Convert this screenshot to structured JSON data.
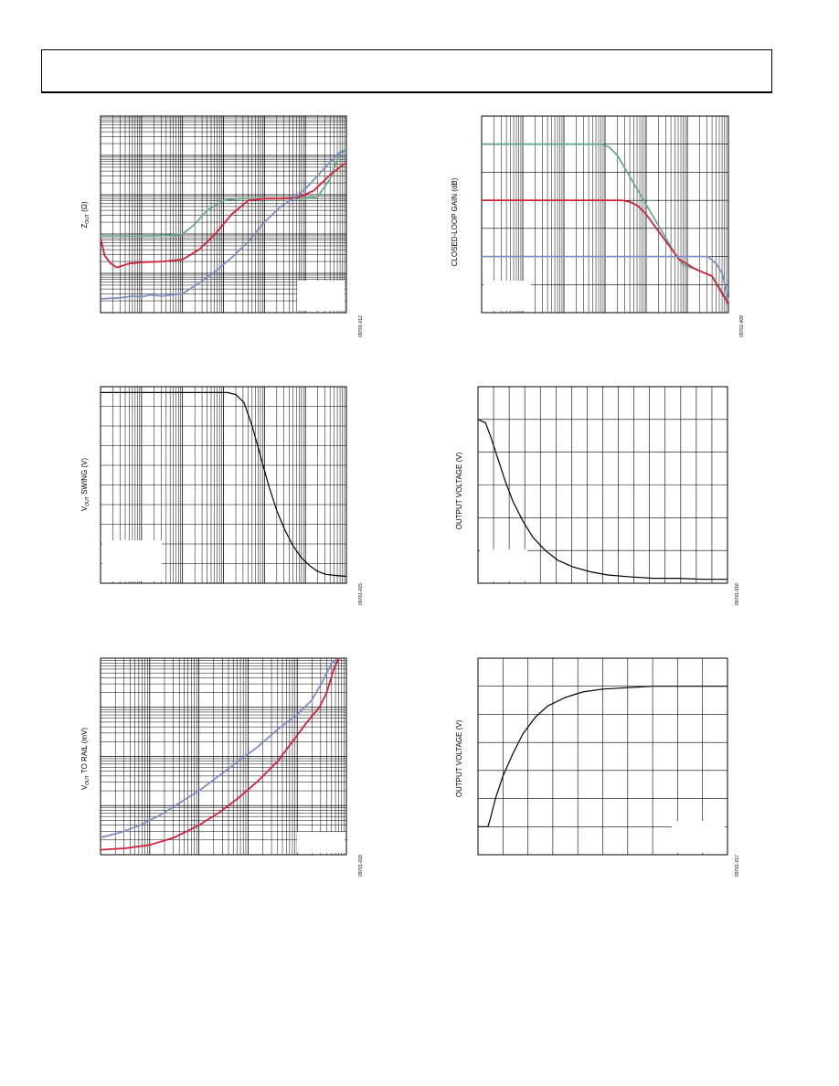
{
  "page": {
    "header_text": ""
  },
  "colors": {
    "green": "#6aaa8c",
    "red": "#d4203a",
    "blue": "#7d8ec4",
    "black": "#000000"
  },
  "charts": [
    {
      "id": "zout",
      "ylabel_main": "Z",
      "ylabel_sub": "OUT",
      "ylabel_rest": " (Ω)",
      "fig_code": "09761-012",
      "legend_box": "bottom-right",
      "grid": "log-log"
    },
    {
      "id": "clgain",
      "ylabel": "CLOSED-LOOP GAIN (dB)",
      "fig_code": "09761-009",
      "legend_box": "bottom-left",
      "grid": "log-linear"
    },
    {
      "id": "swing",
      "ylabel_main": "V",
      "ylabel_sub": "OUT",
      "ylabel_rest": " SWING (V)",
      "fig_code": "09761-015",
      "legend_box": "bottom-left",
      "grid": "log-linear"
    },
    {
      "id": "overload",
      "ylabel": "OUTPUT VOLTAGE (V)",
      "fig_code": "09761-016",
      "legend_box": "bottom-left",
      "grid": "linear"
    },
    {
      "id": "rail",
      "ylabel_main": "V",
      "ylabel_sub": "OUT",
      "ylabel_rest": " TO RAIL (mV)",
      "fig_code": "09761-018",
      "legend_box": "bottom-right",
      "grid": "log-log"
    },
    {
      "id": "step",
      "ylabel": "OUTPUT VOLTAGE (V)",
      "fig_code": "09761-017",
      "legend_box": "bottom-right",
      "grid": "linear"
    }
  ],
  "chart_data": [
    {
      "type": "line",
      "title": "",
      "ylabel": "ZOUT (Ω)",
      "xlabel": "",
      "x_scale": "log",
      "y_scale": "log",
      "x_range_decades": 6,
      "y_range_decades": 5,
      "series": [
        {
          "color": "green",
          "x": [
            0,
            0.5,
            1,
            1.6,
            2.0,
            2.3,
            2.6,
            3.0,
            3.4,
            3.8,
            4.2,
            4.6,
            5.0,
            5.3,
            5.6,
            5.85,
            6.0
          ],
          "y": [
            1.95,
            1.95,
            1.95,
            1.96,
            2.0,
            2.25,
            2.6,
            2.85,
            2.9,
            2.9,
            2.9,
            2.9,
            2.9,
            2.95,
            3.4,
            4.1,
            4.15
          ]
        },
        {
          "color": "red",
          "x": [
            0,
            0.1,
            0.25,
            0.4,
            0.7,
            1.0,
            1.5,
            2.0,
            2.4,
            2.8,
            3.2,
            3.6,
            4.0,
            4.4,
            4.8,
            5.2,
            5.6,
            5.9,
            6.0
          ],
          "y": [
            1.9,
            1.45,
            1.25,
            1.15,
            1.25,
            1.28,
            1.3,
            1.35,
            1.6,
            2.0,
            2.5,
            2.85,
            2.9,
            2.9,
            2.92,
            3.1,
            3.5,
            3.75,
            3.8
          ]
        },
        {
          "color": "blue",
          "x": [
            0,
            0.5,
            0.8,
            1.0,
            1.2,
            1.5,
            1.8,
            2.0,
            2.4,
            2.8,
            3.2,
            3.6,
            4.0,
            4.4,
            4.7,
            5.0,
            5.4,
            5.8,
            6.0
          ],
          "y": [
            0.35,
            0.38,
            0.42,
            0.4,
            0.45,
            0.42,
            0.46,
            0.48,
            0.75,
            1.05,
            1.4,
            1.8,
            2.3,
            2.7,
            2.9,
            3.15,
            3.6,
            4.05,
            4.1
          ]
        }
      ]
    },
    {
      "type": "line",
      "title": "",
      "ylabel": "CLOSED-LOOP GAIN (dB)",
      "xlabel": "",
      "x_scale": "log",
      "y_scale": "linear",
      "x_range_decades": 6,
      "ylim": [
        0,
        7
      ],
      "series": [
        {
          "color": "green",
          "x": [
            0,
            1,
            2,
            2.9,
            3.1,
            3.3,
            3.5,
            3.7,
            3.9,
            4.1,
            4.3,
            4.5,
            4.7,
            4.9,
            5.2,
            5.6,
            6.0
          ],
          "y": [
            6.0,
            6.0,
            6.0,
            6.0,
            5.9,
            5.6,
            5.1,
            4.6,
            4.1,
            3.6,
            3.1,
            2.6,
            2.1,
            1.7,
            1.55,
            1.3,
            0.4
          ]
        },
        {
          "color": "red",
          "x": [
            0,
            1,
            2,
            3,
            3.4,
            3.6,
            3.8,
            4.0,
            4.2,
            4.4,
            4.6,
            4.8,
            5.2,
            5.6,
            6.0
          ],
          "y": [
            4.0,
            4.0,
            4.0,
            4.0,
            4.0,
            3.95,
            3.8,
            3.5,
            3.1,
            2.7,
            2.3,
            1.9,
            1.55,
            1.3,
            0.3
          ]
        },
        {
          "color": "blue",
          "x": [
            0,
            1,
            2,
            3,
            4,
            4.5,
            5.0,
            5.5,
            5.7,
            5.85,
            6.0
          ],
          "y": [
            2.0,
            2.0,
            2.0,
            2.0,
            2.0,
            2.0,
            2.0,
            2.0,
            1.75,
            1.4,
            0.4
          ]
        }
      ]
    },
    {
      "type": "line",
      "title": "",
      "ylabel": "VOUT SWING (V)",
      "xlabel": "",
      "x_scale": "log",
      "y_scale": "linear",
      "x_range_decades": 6,
      "ylim": [
        0,
        10
      ],
      "series": [
        {
          "color": "black",
          "x": [
            0,
            1,
            2,
            3.1,
            3.3,
            3.5,
            3.7,
            3.9,
            4.1,
            4.3,
            4.5,
            4.7,
            4.9,
            5.1,
            5.3,
            5.5,
            5.7,
            6.0
          ],
          "y": [
            9.7,
            9.7,
            9.7,
            9.7,
            9.6,
            9.2,
            8.0,
            6.5,
            5.0,
            3.7,
            2.7,
            1.9,
            1.3,
            0.9,
            0.6,
            0.45,
            0.4,
            0.35
          ]
        }
      ]
    },
    {
      "type": "line",
      "title": "",
      "ylabel": "OUTPUT VOLTAGE (V)",
      "xlabel": "",
      "x_scale": "linear",
      "y_scale": "linear",
      "xlim": [
        0,
        10
      ],
      "ylim": [
        0,
        6
      ],
      "series": [
        {
          "color": "black",
          "x": [
            0,
            0.3,
            0.5,
            0.8,
            1.1,
            1.4,
            1.8,
            2.2,
            2.7,
            3.2,
            3.8,
            4.5,
            5.2,
            6,
            7,
            8,
            9,
            10
          ],
          "y": [
            5.0,
            4.9,
            4.5,
            3.8,
            3.1,
            2.5,
            1.9,
            1.4,
            1.0,
            0.7,
            0.5,
            0.35,
            0.25,
            0.2,
            0.15,
            0.15,
            0.12,
            0.12
          ]
        }
      ]
    },
    {
      "type": "line",
      "title": "",
      "ylabel": "VOUT TO RAIL (mV)",
      "xlabel": "",
      "x_scale": "log",
      "y_scale": "log",
      "x_range_decades": 5,
      "y_range_decades": 4,
      "series": [
        {
          "color": "blue",
          "x": [
            0,
            0.4,
            0.8,
            1.2,
            1.6,
            2.0,
            2.4,
            2.8,
            3.2,
            3.6,
            4.0,
            4.3,
            4.5,
            4.7,
            4.85
          ],
          "y": [
            0.35,
            0.45,
            0.6,
            0.8,
            1.05,
            1.3,
            1.6,
            1.9,
            2.2,
            2.55,
            2.85,
            3.15,
            3.5,
            3.9,
            4.0
          ]
        },
        {
          "color": "red",
          "x": [
            0,
            0.5,
            1.0,
            1.5,
            2.0,
            2.4,
            2.8,
            3.2,
            3.6,
            3.9,
            4.2,
            4.45,
            4.6,
            4.75,
            4.85
          ],
          "y": [
            0.1,
            0.13,
            0.2,
            0.35,
            0.6,
            0.85,
            1.15,
            1.5,
            1.9,
            2.3,
            2.7,
            3.0,
            3.3,
            3.8,
            4.0
          ]
        }
      ]
    },
    {
      "type": "line",
      "title": "",
      "ylabel": "OUTPUT VOLTAGE (V)",
      "xlabel": "",
      "x_scale": "linear",
      "y_scale": "linear",
      "xlim": [
        0,
        10
      ],
      "ylim": [
        0,
        7
      ],
      "series": [
        {
          "color": "black",
          "x": [
            0,
            0.4,
            0.5,
            0.7,
            1.0,
            1.4,
            1.8,
            2.3,
            2.8,
            3.5,
            4.2,
            5,
            6,
            7,
            8,
            9,
            10
          ],
          "y": [
            1.0,
            1.0,
            1.3,
            2.0,
            2.8,
            3.6,
            4.3,
            4.9,
            5.3,
            5.6,
            5.8,
            5.9,
            5.95,
            6.0,
            6.0,
            6.0,
            6.0
          ]
        }
      ]
    }
  ]
}
